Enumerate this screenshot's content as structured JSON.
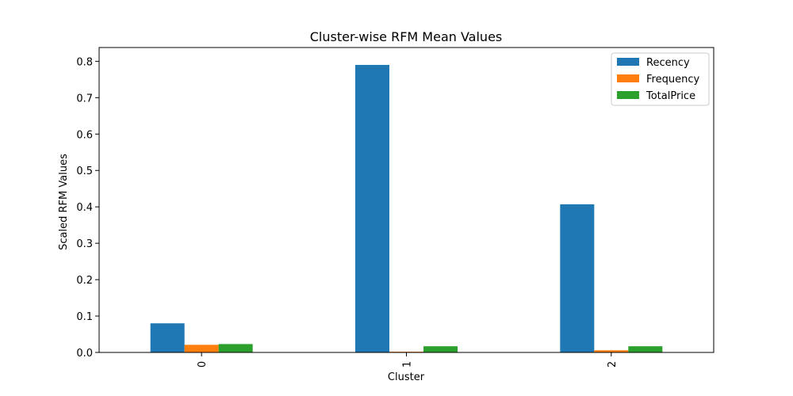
{
  "chart_data": {
    "type": "bar",
    "title": "Cluster-wise RFM Mean Values",
    "xlabel": "Cluster",
    "ylabel": "Scaled RFM Values",
    "categories": [
      "0",
      "1",
      "2"
    ],
    "series": [
      {
        "name": "Recency",
        "color": "#1f77b4",
        "values": [
          0.08,
          0.79,
          0.407
        ]
      },
      {
        "name": "Frequency",
        "color": "#ff7f0e",
        "values": [
          0.021,
          0.002,
          0.006
        ]
      },
      {
        "name": "TotalPrice",
        "color": "#2ca02c",
        "values": [
          0.023,
          0.017,
          0.017
        ]
      }
    ],
    "ylim": [
      0,
      0.8
    ],
    "yticks": [
      "0.0",
      "0.1",
      "0.2",
      "0.3",
      "0.4",
      "0.5",
      "0.6",
      "0.7",
      "0.8"
    ],
    "grid": false,
    "legend_position": "top-right",
    "x_tick_rotation": "vertical"
  }
}
